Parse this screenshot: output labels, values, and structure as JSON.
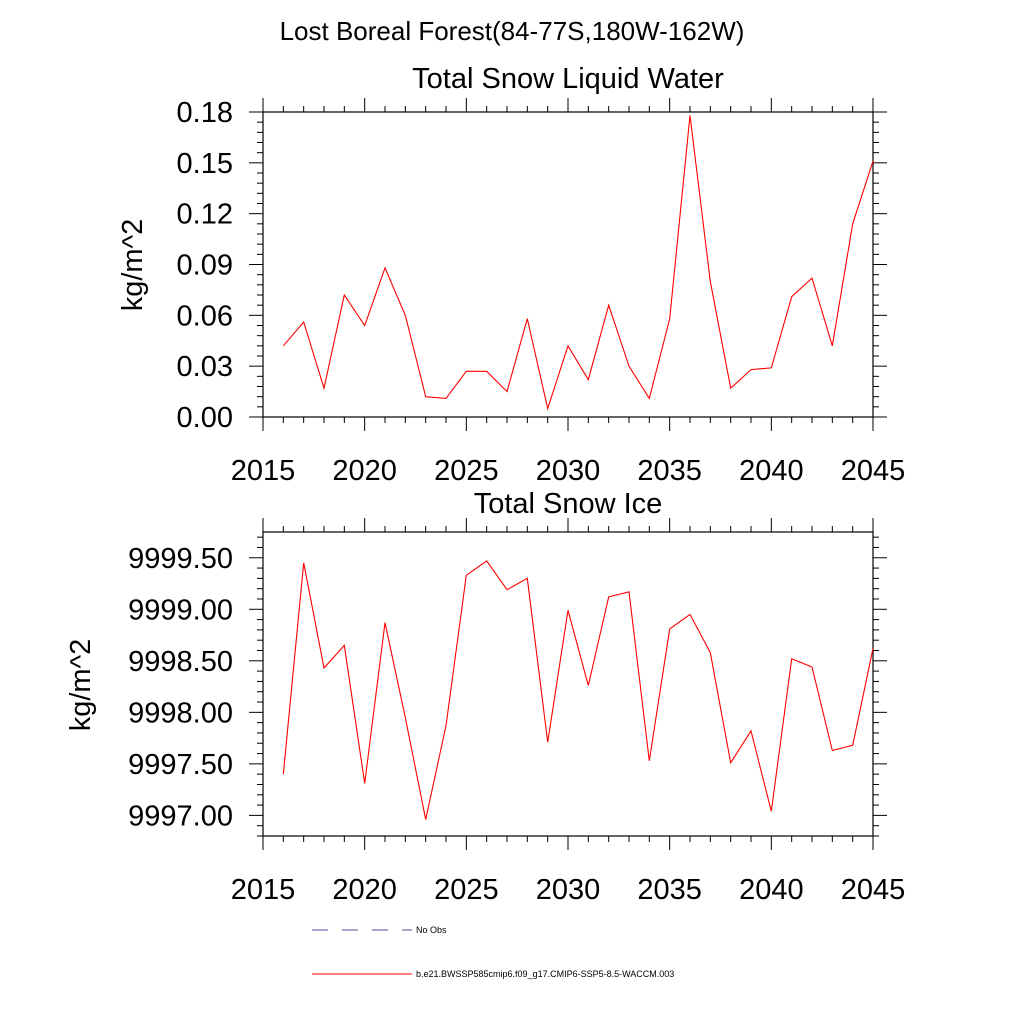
{
  "figure_title": "Lost Boreal Forest(84-77S,180W-162W)",
  "legend": [
    {
      "label": "No Obs",
      "style": "dashed",
      "color": "#4a4a9a"
    },
    {
      "label": "b.e21.BWSSP585cmip6.f09_g17.CMIP6-SSP5-8.5-WACCM.003",
      "style": "solid",
      "color": "#ff0000"
    }
  ],
  "chart_data": [
    {
      "type": "line",
      "title": "Total Snow Liquid Water",
      "xlabel": "",
      "ylabel": "kg/m^2",
      "xlim": [
        2015,
        2045
      ],
      "ylim": [
        0,
        0.18
      ],
      "x_ticks": [
        2015,
        2020,
        2025,
        2030,
        2035,
        2040,
        2045
      ],
      "y_ticks": [
        "0.00",
        "0.03",
        "0.06",
        "0.09",
        "0.12",
        "0.15",
        "0.18"
      ],
      "series": [
        {
          "color": "#ff0000",
          "x": [
            2016,
            2017,
            2018,
            2019,
            2020,
            2021,
            2022,
            2023,
            2024,
            2025,
            2026,
            2027,
            2028,
            2029,
            2030,
            2031,
            2032,
            2033,
            2034,
            2035,
            2036,
            2037,
            2038,
            2039,
            2040,
            2041,
            2042,
            2043,
            2044,
            2045
          ],
          "values": [
            0.042,
            0.056,
            0.017,
            0.072,
            0.054,
            0.088,
            0.06,
            0.012,
            0.011,
            0.027,
            0.027,
            0.015,
            0.058,
            0.005,
            0.042,
            0.022,
            0.066,
            0.03,
            0.011,
            0.058,
            0.178,
            0.08,
            0.017,
            0.028,
            0.029,
            0.071,
            0.082,
            0.042,
            0.114,
            0.151
          ]
        }
      ]
    },
    {
      "type": "line",
      "title": "Total Snow Ice",
      "xlabel": "",
      "ylabel": "kg/m^2",
      "xlim": [
        2015,
        2045
      ],
      "ylim": [
        9996.8,
        9999.75
      ],
      "x_ticks": [
        2015,
        2020,
        2025,
        2030,
        2035,
        2040,
        2045
      ],
      "y_ticks": [
        "9997.00",
        "9997.50",
        "9998.00",
        "9998.50",
        "9999.00",
        "9999.50"
      ],
      "series": [
        {
          "color": "#ff0000",
          "x": [
            2016,
            2017,
            2018,
            2019,
            2020,
            2021,
            2022,
            2023,
            2024,
            2025,
            2026,
            2027,
            2028,
            2029,
            2030,
            2031,
            2032,
            2033,
            2034,
            2035,
            2036,
            2037,
            2038,
            2039,
            2040,
            2041,
            2042,
            2043,
            2044,
            2045
          ],
          "values": [
            9997.4,
            9999.45,
            9998.43,
            9998.65,
            9997.31,
            9998.87,
            9997.95,
            9996.96,
            9997.87,
            9999.33,
            9999.47,
            9999.19,
            9999.3,
            9997.71,
            9998.99,
            9998.26,
            9999.12,
            9999.17,
            9997.53,
            9998.81,
            9998.95,
            9998.58,
            9997.51,
            9997.82,
            9997.04,
            9998.52,
            9998.44,
            9997.63,
            9997.68,
            9998.62
          ]
        }
      ]
    }
  ]
}
